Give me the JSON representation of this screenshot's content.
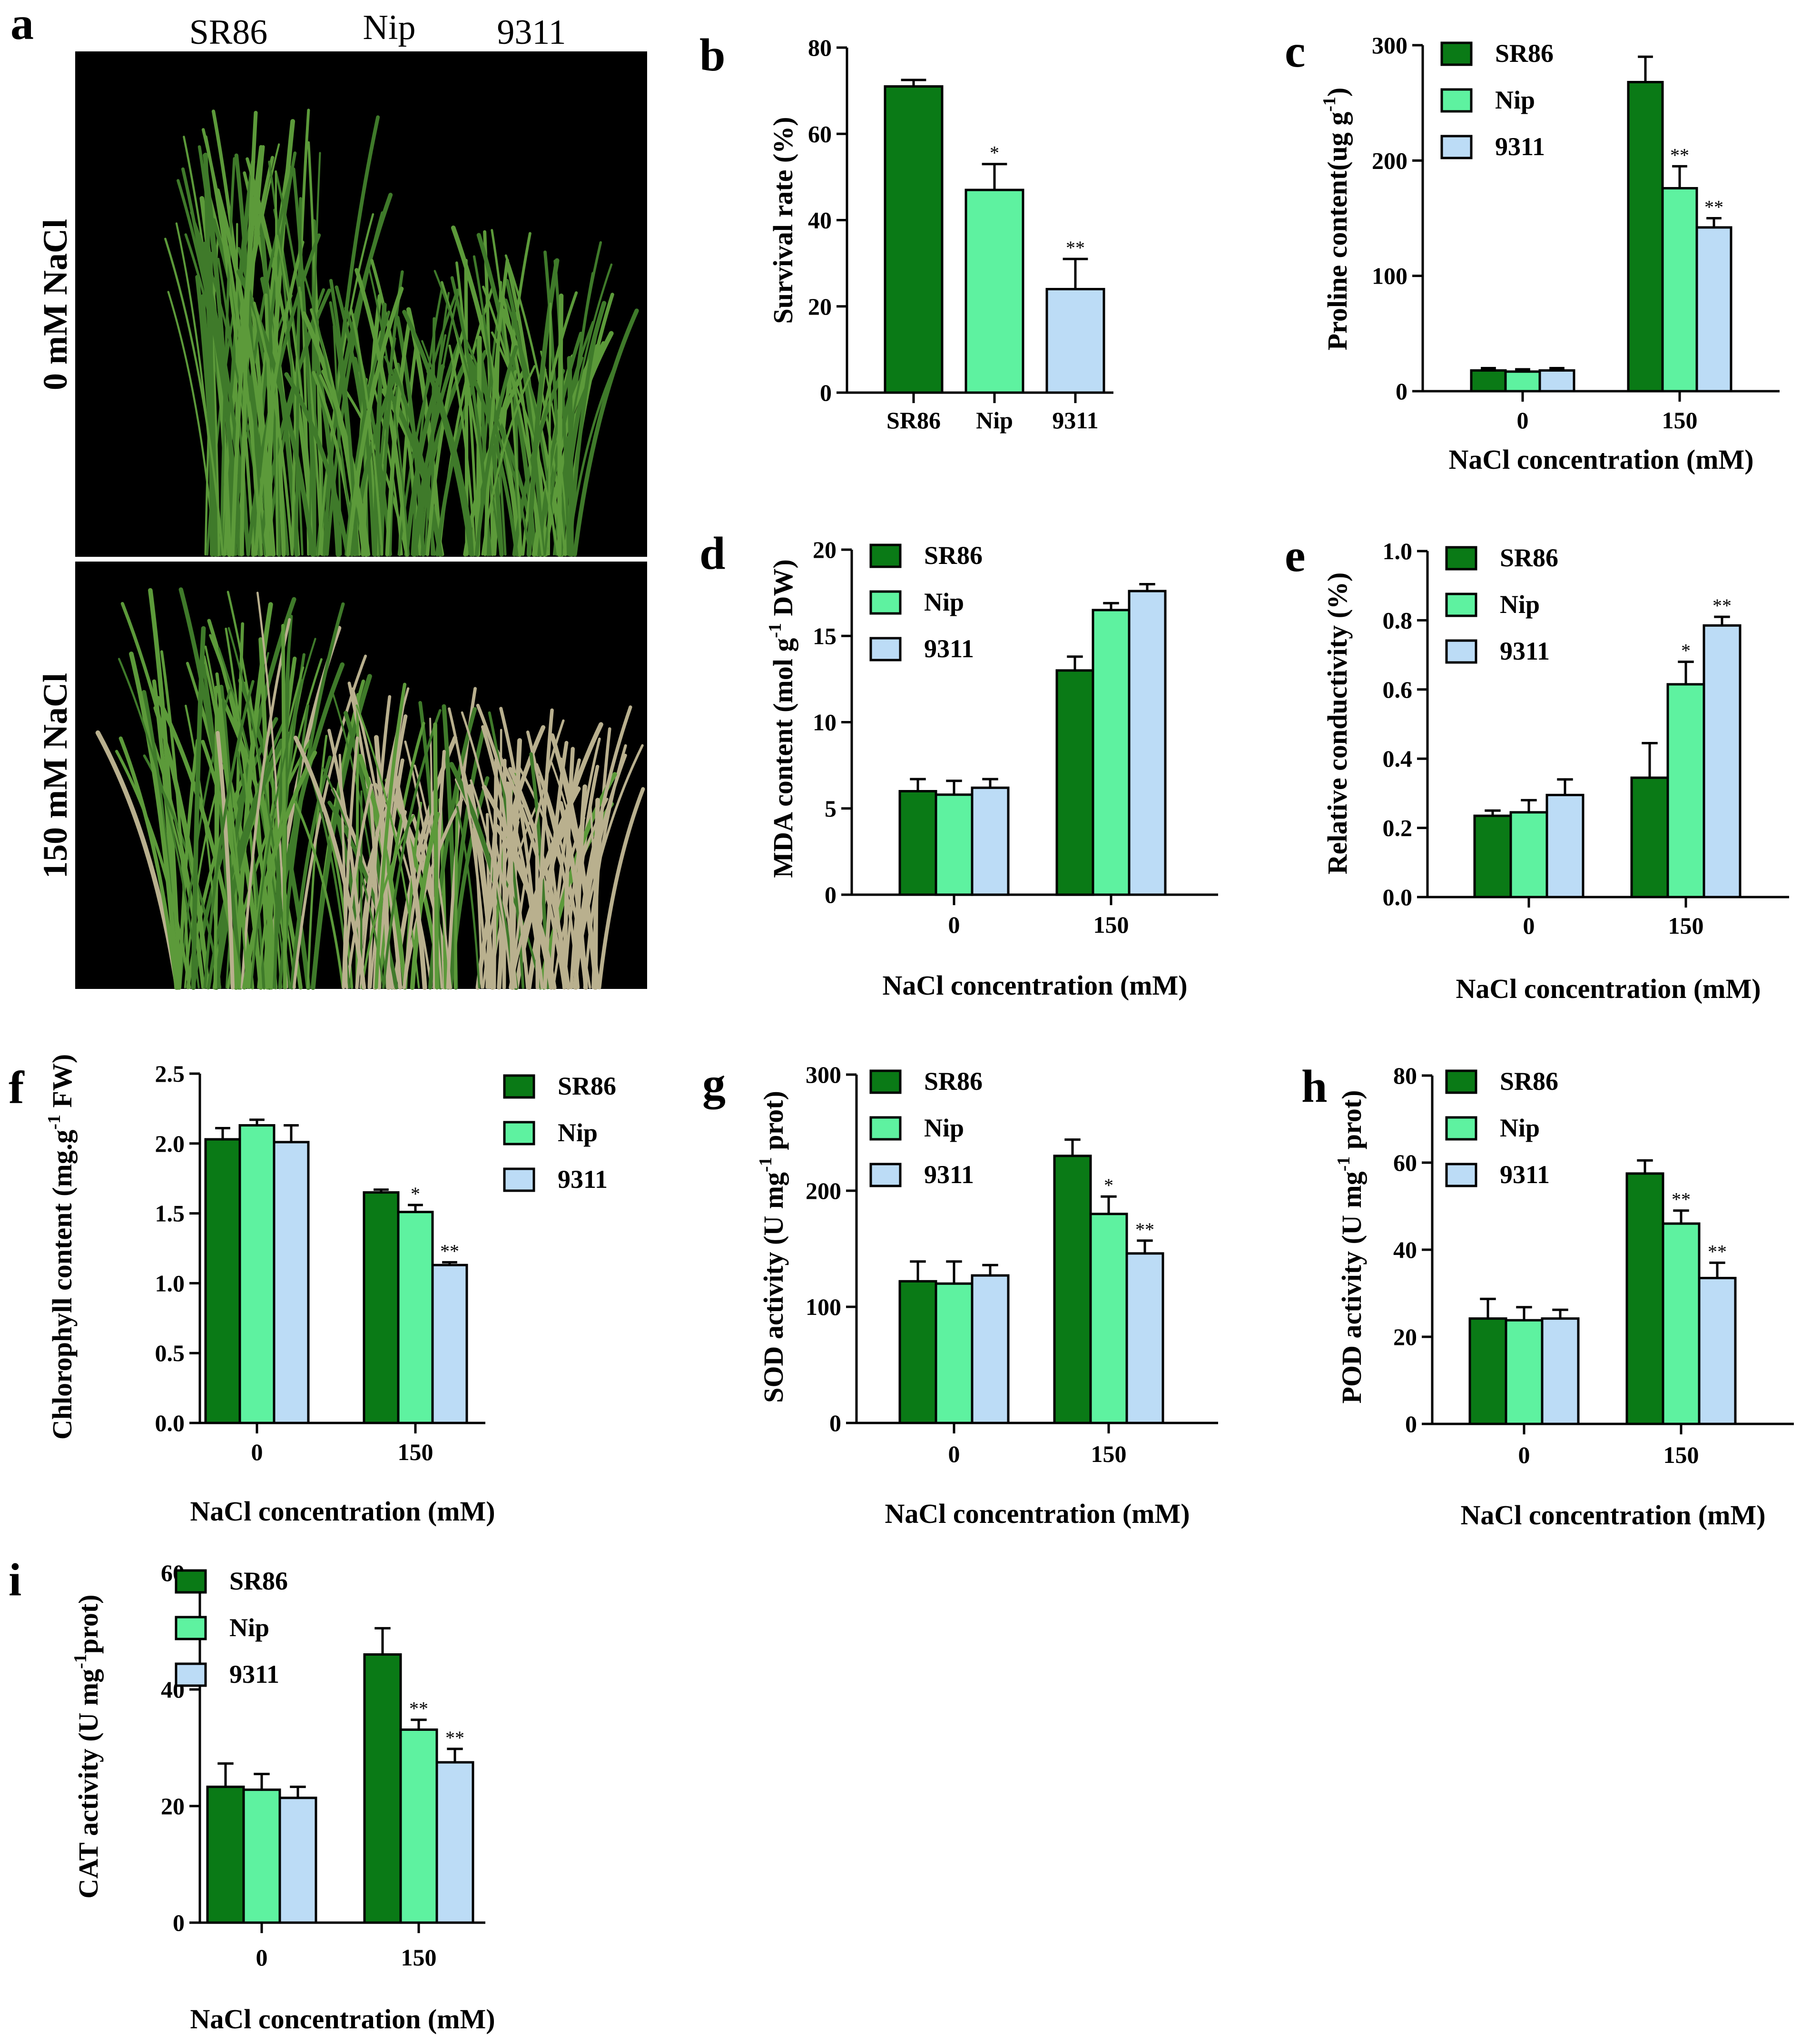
{
  "figure": {
    "panel_letters": [
      "a",
      "b",
      "c",
      "d",
      "e",
      "f",
      "g",
      "h",
      "i"
    ]
  },
  "photo": {
    "letter": "a",
    "column_labels": [
      "SR86",
      "Nip",
      "9311"
    ],
    "row_labels": [
      "0 mM NaCl",
      "150 mM NaCl"
    ],
    "colors": {
      "background": "#000000",
      "leaf": "#5c9a3a",
      "leaf_dark": "#3f7a2a",
      "stressed": "#b9b08e"
    }
  },
  "colors": {
    "SR86": "#0a7a16",
    "Nip": "#5ef2a0",
    "9311": "#bcdcf6"
  },
  "chart_data": [
    {
      "panel": "b",
      "type": "bar",
      "grouped": false,
      "ylabel": "Survival rate (%)",
      "xlabel": "",
      "ylim": [
        0,
        80
      ],
      "yticks": [
        "0",
        "20",
        "40",
        "60",
        "80"
      ],
      "categories": [
        "SR86",
        "Nip",
        "9311"
      ],
      "series": [
        {
          "name": "Survival rate",
          "values": [
            71,
            47,
            24
          ],
          "errors": [
            1.5,
            6,
            7
          ],
          "sig": [
            "",
            "*",
            "**"
          ],
          "colors": [
            "SR86",
            "Nip",
            "9311"
          ]
        }
      ],
      "legend": null
    },
    {
      "panel": "c",
      "type": "bar",
      "grouped": true,
      "ylabel": "Proline content(ug g-1)",
      "ylabel_parts": [
        "Proline content(ug g",
        "-1",
        ")"
      ],
      "xlabel": "NaCl concentration (mM)",
      "ylim": [
        0,
        300
      ],
      "yticks": [
        "0",
        "100",
        "200",
        "300"
      ],
      "categories": [
        "0",
        "150"
      ],
      "series": [
        {
          "name": "SR86",
          "values": [
            18,
            268
          ],
          "errors": [
            2,
            22
          ],
          "sig": [
            "",
            ""
          ]
        },
        {
          "name": "Nip",
          "values": [
            17,
            176
          ],
          "errors": [
            2,
            19
          ],
          "sig": [
            "",
            "**"
          ]
        },
        {
          "name": "9311",
          "values": [
            18,
            142
          ],
          "errors": [
            2,
            8
          ],
          "sig": [
            "",
            "**"
          ]
        }
      ],
      "legend": [
        "SR86",
        "Nip",
        "9311"
      ]
    },
    {
      "panel": "d",
      "type": "bar",
      "grouped": true,
      "ylabel": "MDA content (mol g-1 DW)",
      "ylabel_parts": [
        "MDA content (mol g",
        "-1",
        " DW)"
      ],
      "xlabel": "NaCl concentration (mM)",
      "ylim": [
        0,
        20
      ],
      "yticks": [
        "0",
        "5",
        "10",
        "15",
        "20"
      ],
      "categories": [
        "0",
        "150"
      ],
      "series": [
        {
          "name": "SR86",
          "values": [
            6.0,
            13.0
          ],
          "errors": [
            0.7,
            0.8
          ],
          "sig": [
            "",
            ""
          ]
        },
        {
          "name": "Nip",
          "values": [
            5.8,
            16.5
          ],
          "errors": [
            0.8,
            0.4
          ],
          "sig": [
            "",
            ""
          ]
        },
        {
          "name": "9311",
          "values": [
            6.2,
            17.6
          ],
          "errors": [
            0.5,
            0.4
          ],
          "sig": [
            "",
            ""
          ]
        }
      ],
      "legend": [
        "SR86",
        "Nip",
        "9311"
      ]
    },
    {
      "panel": "e",
      "type": "bar",
      "grouped": true,
      "ylabel": "Relative conductivity (%)",
      "xlabel": "NaCl concentration (mM)",
      "ylim": [
        0,
        1.0
      ],
      "yticks": [
        "0.0",
        "0.2",
        "0.4",
        "0.6",
        "0.8",
        "1.0"
      ],
      "categories": [
        "0",
        "150"
      ],
      "series": [
        {
          "name": "SR86",
          "values": [
            0.235,
            0.345
          ],
          "errors": [
            0.015,
            0.1
          ],
          "sig": [
            "",
            ""
          ]
        },
        {
          "name": "Nip",
          "values": [
            0.245,
            0.615
          ],
          "errors": [
            0.035,
            0.065
          ],
          "sig": [
            "",
            "*"
          ]
        },
        {
          "name": "9311",
          "values": [
            0.295,
            0.785
          ],
          "errors": [
            0.045,
            0.025
          ],
          "sig": [
            "",
            "**"
          ]
        }
      ],
      "legend": [
        "SR86",
        "Nip",
        "9311"
      ]
    },
    {
      "panel": "f",
      "type": "bar",
      "grouped": true,
      "ylabel": "Chlorophyll content (mg.g-1 FW)",
      "ylabel_parts": [
        "Chlorophyll content (mg.g",
        "-1",
        " FW)"
      ],
      "xlabel": "NaCl concentration (mM)",
      "ylim": [
        0,
        2.5
      ],
      "yticks": [
        "0.0",
        "0.5",
        "1.0",
        "1.5",
        "2.0",
        "2.5"
      ],
      "categories": [
        "0",
        "150"
      ],
      "series": [
        {
          "name": "SR86",
          "values": [
            2.03,
            1.65
          ],
          "errors": [
            0.08,
            0.02
          ],
          "sig": [
            "",
            ""
          ]
        },
        {
          "name": "Nip",
          "values": [
            2.13,
            1.51
          ],
          "errors": [
            0.04,
            0.05
          ],
          "sig": [
            "",
            "*"
          ]
        },
        {
          "name": "9311",
          "values": [
            2.01,
            1.13
          ],
          "errors": [
            0.12,
            0.02
          ],
          "sig": [
            "",
            "**"
          ]
        }
      ],
      "legend": [
        "SR86",
        "Nip",
        "9311"
      ]
    },
    {
      "panel": "g",
      "type": "bar",
      "grouped": true,
      "ylabel": "SOD activity (U mg-1 prot)",
      "ylabel_parts": [
        "SOD activity (U mg",
        "-1",
        " prot)"
      ],
      "xlabel": "NaCl concentration (mM)",
      "ylim": [
        0,
        300
      ],
      "yticks": [
        "0",
        "100",
        "200",
        "300"
      ],
      "categories": [
        "0",
        "150"
      ],
      "series": [
        {
          "name": "SR86",
          "values": [
            122,
            230
          ],
          "errors": [
            17,
            14
          ],
          "sig": [
            "",
            ""
          ]
        },
        {
          "name": "Nip",
          "values": [
            120,
            180
          ],
          "errors": [
            19,
            15
          ],
          "sig": [
            "",
            "*"
          ]
        },
        {
          "name": "9311",
          "values": [
            127,
            146
          ],
          "errors": [
            9,
            11
          ],
          "sig": [
            "",
            "**"
          ]
        }
      ],
      "legend": [
        "SR86",
        "Nip",
        "9311"
      ]
    },
    {
      "panel": "h",
      "type": "bar",
      "grouped": true,
      "ylabel": "POD activity (U mg-1 prot)",
      "ylabel_parts": [
        "POD activity (U mg",
        "-1",
        " prot)"
      ],
      "xlabel": "NaCl concentration (mM)",
      "ylim": [
        0,
        80
      ],
      "yticks": [
        "0",
        "20",
        "40",
        "60",
        "80"
      ],
      "categories": [
        "0",
        "150"
      ],
      "series": [
        {
          "name": "SR86",
          "values": [
            24.2,
            57.5
          ],
          "errors": [
            4.5,
            3.0
          ],
          "sig": [
            "",
            ""
          ]
        },
        {
          "name": "Nip",
          "values": [
            23.8,
            46.0
          ],
          "errors": [
            3.0,
            3.0
          ],
          "sig": [
            "",
            "**"
          ]
        },
        {
          "name": "9311",
          "values": [
            24.2,
            33.5
          ],
          "errors": [
            2.0,
            3.5
          ],
          "sig": [
            "",
            "**"
          ]
        }
      ],
      "legend": [
        "SR86",
        "Nip",
        "9311"
      ]
    },
    {
      "panel": "i",
      "type": "bar",
      "grouped": true,
      "ylabel": "CAT activity (U mg-1prot)",
      "ylabel_parts": [
        "CAT activity (U mg",
        "-1",
        "prot)"
      ],
      "xlabel": "NaCl concentration (mM)",
      "ylim": [
        0,
        60
      ],
      "yticks": [
        "0",
        "20",
        "40",
        "60"
      ],
      "categories": [
        "0",
        "150"
      ],
      "series": [
        {
          "name": "SR86",
          "values": [
            23.3,
            46.0
          ],
          "errors": [
            4.0,
            4.5
          ],
          "sig": [
            "",
            ""
          ]
        },
        {
          "name": "Nip",
          "values": [
            22.8,
            33.1
          ],
          "errors": [
            2.7,
            1.7
          ],
          "sig": [
            "",
            "**"
          ]
        },
        {
          "name": "9311",
          "values": [
            21.4,
            27.5
          ],
          "errors": [
            1.9,
            2.3
          ],
          "sig": [
            "",
            "**"
          ]
        }
      ],
      "legend": [
        "SR86",
        "Nip",
        "9311"
      ]
    }
  ]
}
